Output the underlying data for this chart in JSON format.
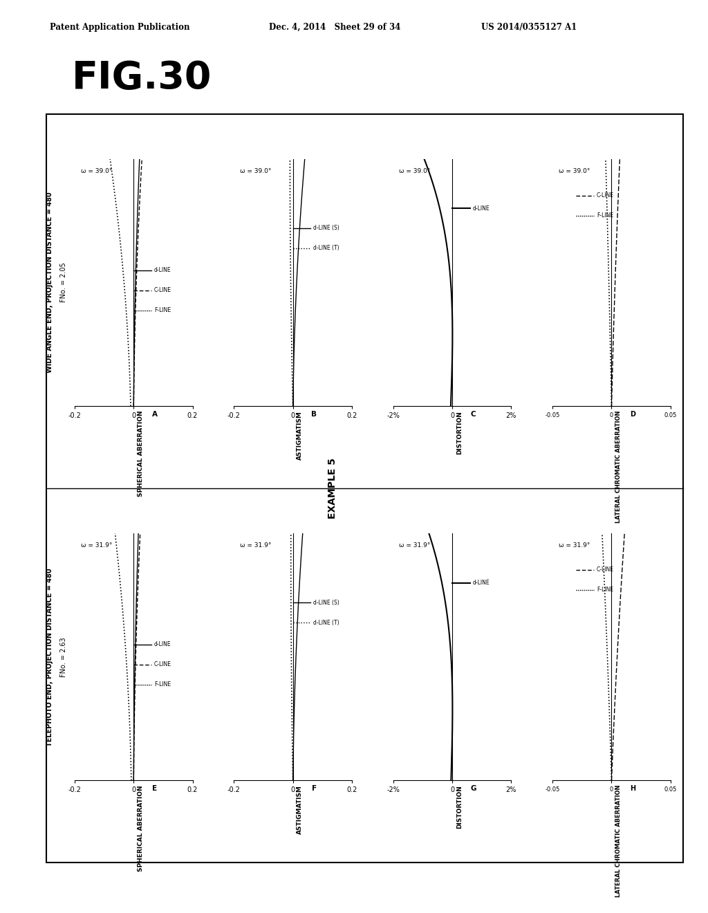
{
  "header_left": "Patent Application Publication",
  "header_mid": "Dec. 4, 2014   Sheet 29 of 34",
  "header_right": "US 2014/0355127 A1",
  "fig_title": "FIG.30",
  "example_label": "EXAMPLE 5",
  "wide_angle_header": "WIDE ANGLE END, PROJECTION DISTANCE = 480",
  "wide_fno": "FNo. = 2.05",
  "wide_omega": "ω = 39.0°",
  "telephoto_header": "TELEPHOTO END, PROJECTION DISTANCE = 480",
  "tele_fno": "FNo. = 2.63",
  "tele_omega": "ω = 31.9°",
  "sph_xlim": [
    -0.2,
    0.2
  ],
  "sph_xticks": [
    -0.2,
    0.0,
    0.2
  ],
  "sph_xlabels": [
    "-0.2",
    "0",
    "0.2"
  ],
  "ast_xlim": [
    -0.2,
    0.2
  ],
  "ast_xticks": [
    -0.2,
    0.0,
    0.2
  ],
  "ast_xlabels": [
    "-0.2",
    "0",
    "0.2"
  ],
  "dist_xlim": [
    -2.0,
    2.0
  ],
  "dist_xticks": [
    -2.0,
    0.0,
    2.0
  ],
  "dist_xlabels": [
    "-2%",
    "0",
    "2%"
  ],
  "lca_xlim": [
    -0.05,
    0.05
  ],
  "lca_xticks": [
    -0.05,
    0.0,
    0.05
  ],
  "lca_xlabels": [
    "-0.05",
    "0",
    "0.05"
  ],
  "subplot_A_title": "SPHERICAL ABERRATION",
  "subplot_B_title": "ASTIGMATISM",
  "subplot_C_title": "DISTORTION",
  "subplot_D_title": "LATERAL CHROMATIC ABERRATION",
  "subplot_E_title": "SPHERICAL ABERRATION",
  "subplot_F_title": "ASTIGMATISM",
  "subplot_G_title": "DISTORTION",
  "subplot_H_title": "LATERAL CHROMATIC ABERRATION",
  "bg_color": "#ffffff",
  "line_black": "#000000"
}
